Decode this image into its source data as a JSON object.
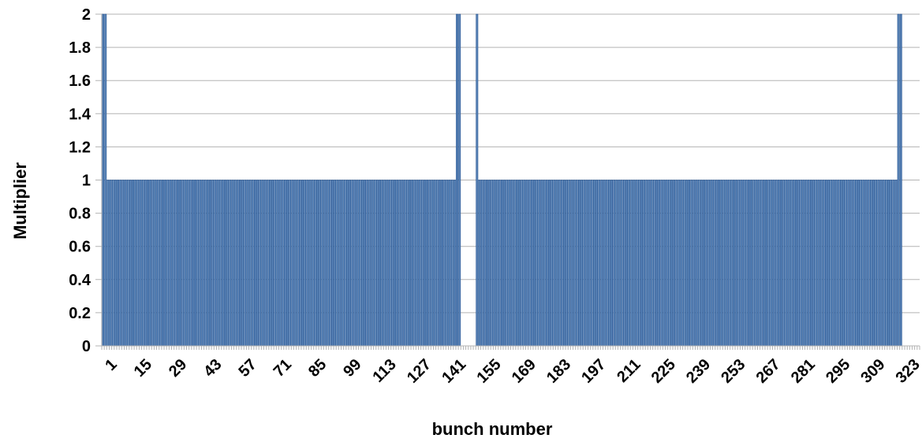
{
  "chart_data": {
    "type": "bar",
    "xlabel": "bunch number",
    "ylabel": "Multiplier",
    "ylim": [
      0,
      2
    ],
    "y_ticks": [
      0,
      0.2,
      0.4,
      0.6,
      0.8,
      1,
      1.2,
      1.4,
      1.6,
      1.8,
      2
    ],
    "y_tick_labels": [
      "0",
      "0.2",
      "0.4",
      "0.6",
      "0.8",
      "1",
      "1.2",
      "1.4",
      "1.6",
      "1.8",
      "2"
    ],
    "x_range": [
      1,
      328
    ],
    "x_tick_labels": [
      "1",
      "15",
      "29",
      "43",
      "57",
      "71",
      "85",
      "99",
      "113",
      "127",
      "141",
      "155",
      "169",
      "183",
      "197",
      "211",
      "225",
      "239",
      "253",
      "267",
      "281",
      "295",
      "309",
      "323"
    ],
    "grid": "horizontal",
    "bar_color": "#5b85b8",
    "bar_edge_color": "#1f4f8f",
    "series": [
      {
        "values": [
          2,
          2,
          1,
          1,
          1,
          1,
          1,
          1,
          1,
          1,
          1,
          1,
          1,
          1,
          1,
          1,
          1,
          1,
          1,
          1,
          1,
          1,
          1,
          1,
          1,
          1,
          1,
          1,
          1,
          1,
          1,
          1,
          1,
          1,
          1,
          1,
          1,
          1,
          1,
          1,
          1,
          1,
          1,
          1,
          1,
          1,
          1,
          1,
          1,
          1,
          1,
          1,
          1,
          1,
          1,
          1,
          1,
          1,
          1,
          1,
          1,
          1,
          1,
          1,
          1,
          1,
          1,
          1,
          1,
          1,
          1,
          1,
          1,
          1,
          1,
          1,
          1,
          1,
          1,
          1,
          1,
          1,
          1,
          1,
          1,
          1,
          1,
          1,
          1,
          1,
          1,
          1,
          1,
          1,
          1,
          1,
          1,
          1,
          1,
          1,
          1,
          1,
          1,
          1,
          1,
          1,
          1,
          1,
          1,
          1,
          1,
          1,
          1,
          1,
          1,
          1,
          1,
          1,
          1,
          1,
          1,
          1,
          1,
          1,
          1,
          1,
          1,
          1,
          1,
          1,
          1,
          1,
          1,
          1,
          1,
          1,
          1,
          1,
          1,
          1,
          1,
          1,
          2,
          2,
          0,
          0,
          0,
          0,
          0,
          0,
          2,
          1,
          1,
          1,
          1,
          1,
          1,
          1,
          1,
          1,
          1,
          1,
          1,
          1,
          1,
          1,
          1,
          1,
          1,
          1,
          1,
          1,
          1,
          1,
          1,
          1,
          1,
          1,
          1,
          1,
          1,
          1,
          1,
          1,
          1,
          1,
          1,
          1,
          1,
          1,
          1,
          1,
          1,
          1,
          1,
          1,
          1,
          1,
          1,
          1,
          1,
          1,
          1,
          1,
          1,
          1,
          1,
          1,
          1,
          1,
          1,
          1,
          1,
          1,
          1,
          1,
          1,
          1,
          1,
          1,
          1,
          1,
          1,
          1,
          1,
          1,
          1,
          1,
          1,
          1,
          1,
          1,
          1,
          1,
          1,
          1,
          1,
          1,
          1,
          1,
          1,
          1,
          1,
          1,
          1,
          1,
          1,
          1,
          1,
          1,
          1,
          1,
          1,
          1,
          1,
          1,
          1,
          1,
          1,
          1,
          1,
          1,
          1,
          1,
          1,
          1,
          1,
          1,
          1,
          1,
          1,
          1,
          1,
          1,
          1,
          1,
          1,
          1,
          1,
          1,
          1,
          1,
          1,
          1,
          1,
          1,
          1,
          1,
          1,
          1,
          1,
          1,
          1,
          1,
          1,
          1,
          1,
          1,
          1,
          1,
          1,
          1,
          1,
          1,
          1,
          1,
          1,
          1,
          1,
          1,
          1,
          1,
          1,
          1,
          1,
          1,
          1,
          1,
          1,
          2,
          2,
          0,
          0,
          0,
          0,
          0,
          0,
          0
        ]
      }
    ]
  }
}
